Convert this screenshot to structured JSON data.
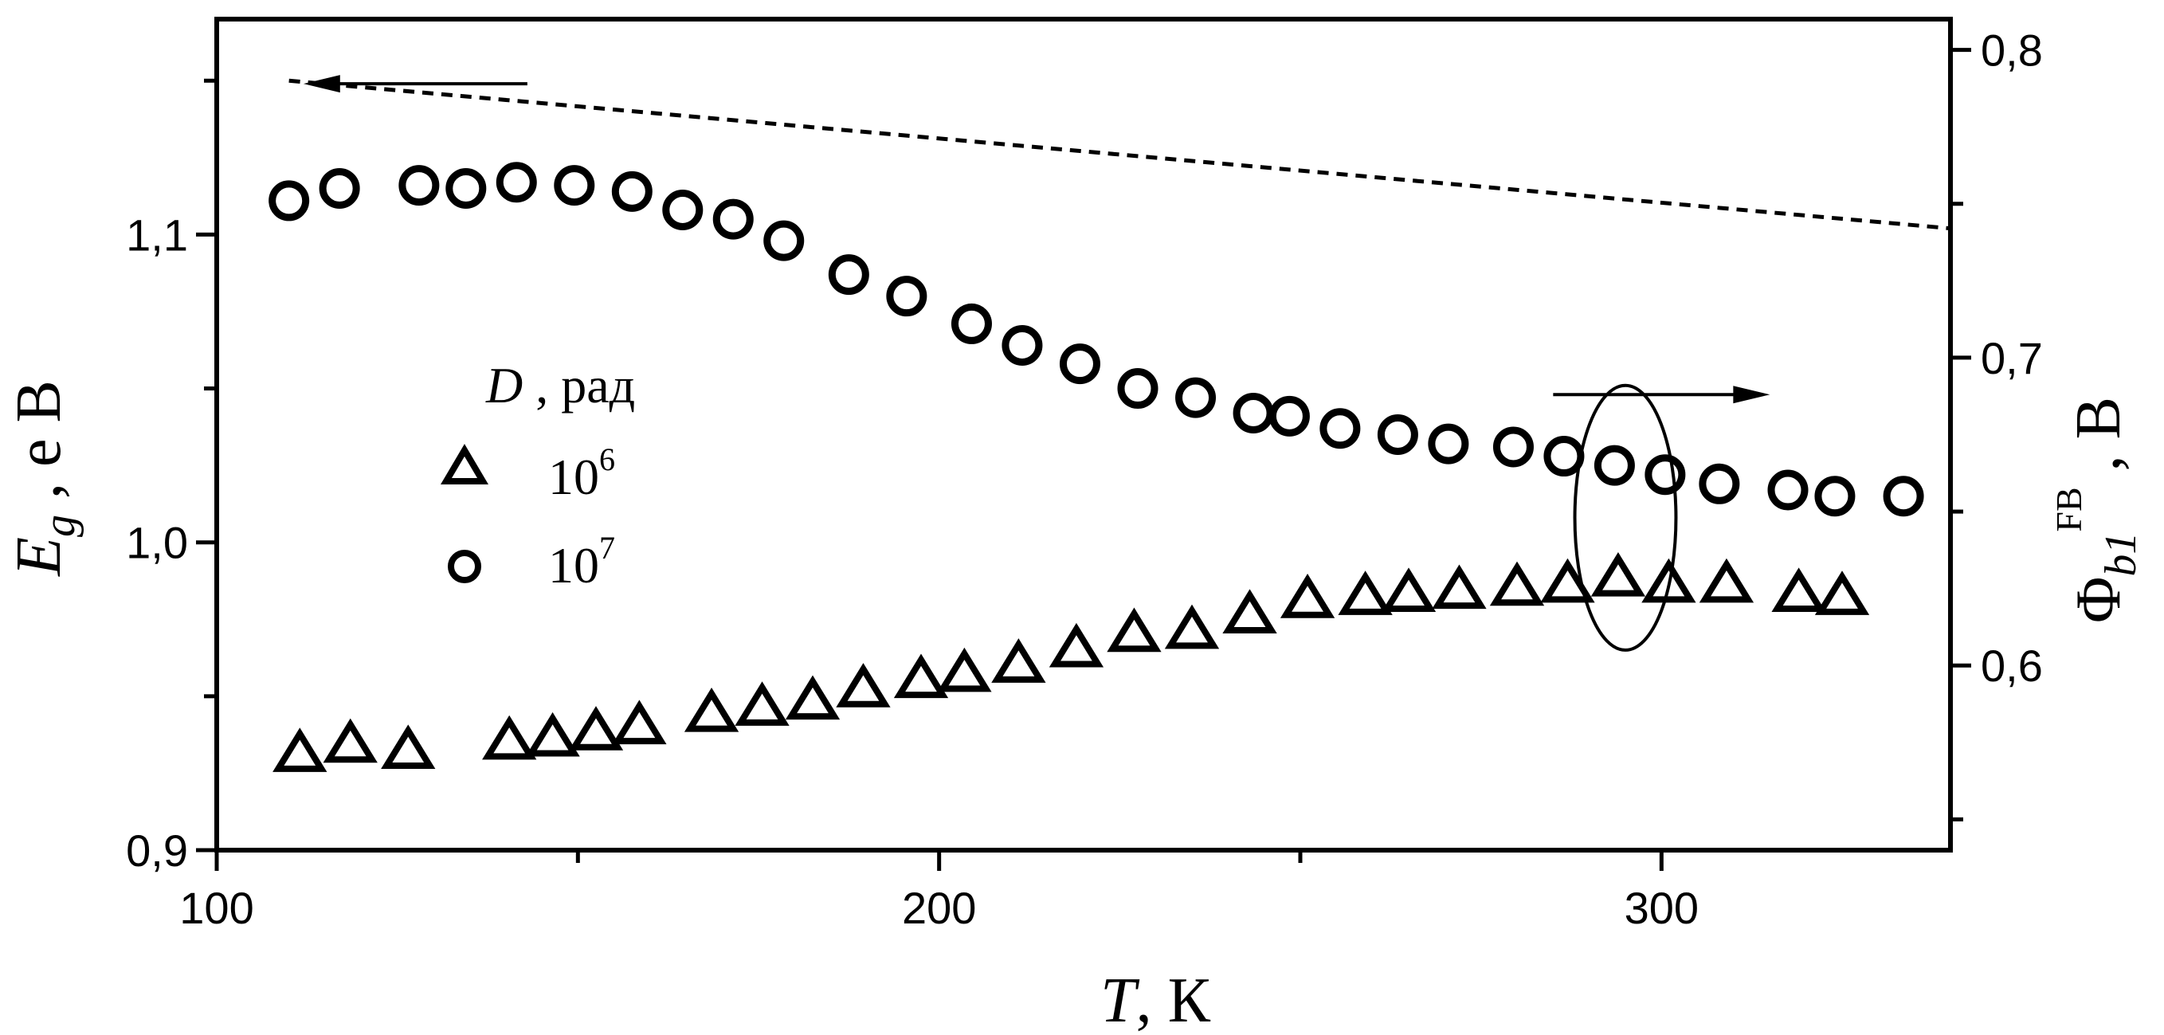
{
  "chart_data": {
    "type": "scatter",
    "x_axis": {
      "range": [
        100,
        340
      ],
      "major_ticks": [
        100,
        200,
        300
      ],
      "minor_ticks": [
        150,
        250
      ],
      "tick_labels": [
        "100",
        "200",
        "300"
      ],
      "label_main": "T",
      "label_unit": ",  К"
    },
    "y_left": {
      "range": [
        0.9,
        1.17
      ],
      "major_ticks": [
        0.9,
        1.0,
        1.1
      ],
      "minor_ticks": [
        0.95,
        1.05,
        1.15
      ],
      "tick_labels": [
        "0,9",
        "1,0",
        "1,1"
      ],
      "label_main": "E",
      "label_sub": "g",
      "label_unit": " , е В"
    },
    "y_right": {
      "range": [
        0.54,
        0.81
      ],
      "major_ticks": [
        0.6,
        0.7,
        0.8
      ],
      "minor_ticks": [
        0.55,
        0.65,
        0.75
      ],
      "tick_labels": [
        "0,6",
        "0,7",
        "0,8"
      ],
      "label_main": "Φ",
      "label_sub": "b1",
      "label_sup": "FB",
      "label_unit": " ,  В"
    },
    "legend": {
      "title_main": "D",
      "title_unit": " , рад",
      "entries": [
        {
          "marker": "triangle",
          "base": "10",
          "exp": "6"
        },
        {
          "marker": "circle",
          "base": "10",
          "exp": "7"
        }
      ]
    },
    "series": [
      {
        "marker": "triangle",
        "axis": "right",
        "points": [
          [
            111.5,
            0.571
          ],
          [
            118.5,
            0.574
          ],
          [
            126.5,
            0.572
          ],
          [
            140.5,
            0.575
          ],
          [
            146.5,
            0.576
          ],
          [
            152.5,
            0.578
          ],
          [
            158.5,
            0.58
          ],
          [
            168.5,
            0.584
          ],
          [
            175.5,
            0.586
          ],
          [
            182.5,
            0.588
          ],
          [
            189.5,
            0.592
          ],
          [
            197.5,
            0.595
          ],
          [
            203.5,
            0.597
          ],
          [
            211,
            0.6
          ],
          [
            219,
            0.605
          ],
          [
            227,
            0.61
          ],
          [
            235,
            0.611
          ],
          [
            243,
            0.616
          ],
          [
            251,
            0.621
          ],
          [
            259,
            0.622
          ],
          [
            265,
            0.623
          ],
          [
            272,
            0.624
          ],
          [
            280,
            0.625
          ],
          [
            287,
            0.626
          ],
          [
            294,
            0.628
          ],
          [
            301,
            0.626
          ],
          [
            309,
            0.626
          ],
          [
            319,
            0.623
          ],
          [
            325,
            0.622
          ]
        ]
      },
      {
        "marker": "circle",
        "axis": "right",
        "points": [
          [
            110,
            0.751
          ],
          [
            117,
            0.755
          ],
          [
            128,
            0.756
          ],
          [
            134.5,
            0.755
          ],
          [
            141.5,
            0.757
          ],
          [
            149.5,
            0.756
          ],
          [
            157.5,
            0.754
          ],
          [
            164.5,
            0.748
          ],
          [
            171.5,
            0.745
          ],
          [
            178.5,
            0.738
          ],
          [
            187.5,
            0.727
          ],
          [
            195.5,
            0.72
          ],
          [
            204.5,
            0.711
          ],
          [
            211.5,
            0.704
          ],
          [
            219.5,
            0.698
          ],
          [
            227.5,
            0.69
          ],
          [
            235.5,
            0.687
          ],
          [
            243.5,
            0.682
          ],
          [
            248.5,
            0.681
          ],
          [
            255.5,
            0.677
          ],
          [
            263.5,
            0.675
          ],
          [
            270.5,
            0.672
          ],
          [
            279.5,
            0.671
          ],
          [
            286.5,
            0.668
          ],
          [
            293.5,
            0.665
          ],
          [
            300.5,
            0.662
          ],
          [
            308,
            0.659
          ],
          [
            317.5,
            0.657
          ],
          [
            324,
            0.655
          ],
          [
            333.5,
            0.655
          ]
        ]
      },
      {
        "line": "dashed",
        "axis": "left",
        "points": [
          [
            110,
            1.15
          ],
          [
            340,
            1.102
          ]
        ]
      }
    ],
    "annotations": [
      {
        "type": "arrow",
        "direction": "left",
        "y_axis": "left",
        "y": 1.149,
        "x_from": 143,
        "x_to": 112
      },
      {
        "type": "arrow",
        "direction": "right",
        "y_axis": "right",
        "y": 0.688,
        "x_from": 285,
        "x_to": 315
      },
      {
        "type": "ellipse",
        "y_axis": "right",
        "cx": 295,
        "cy": 0.648,
        "rx": 7,
        "ry": 0.043
      }
    ]
  }
}
